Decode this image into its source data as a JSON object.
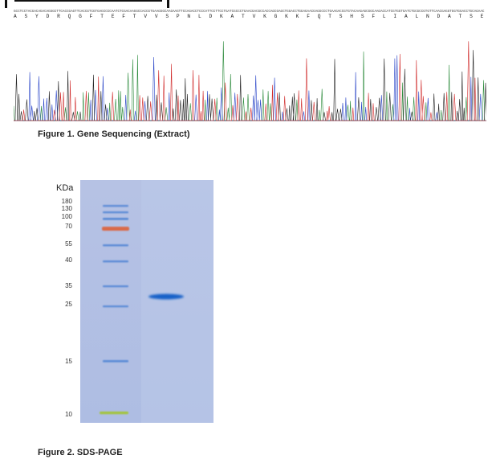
{
  "sequence": {
    "nucleotides": "GCCTCCTACGACAGACAGGGCTTCACCGAGTTCACCGTCGTGAGCCCCAATCTCGACAAGGCCACCGTGAAGGGCAAGAAGTTCCAGACCTCCCATTCCTTCCTGATCGCCCTGAACGACGCCACCAGCGAGCTGGACCTGGAGAACGAGGCCCTGAAGACCGTGTACAAGAGCGGCAAGACCATCGTGGTGATCTGCGCCGTGTTCAACGAGGTGGTGGACCTGCAGAAC",
    "amino_acids": "A S Y D R Q G F T E F T V V S P N L D K A T V K G K K F Q T S H S F L I A L N D A T S E L D L E N E A L K T V Y K S G K T I V V I C A V F N E V V D L Q N"
  },
  "figure1": {
    "caption": "Figure 1. Gene Sequencing (Extract)"
  },
  "figure2": {
    "caption": "Figure 2. SDS-PAGE",
    "unit_label": "KDa",
    "marker_labels": [
      "180",
      "130",
      "100",
      "70",
      "55",
      "40",
      "35",
      "25",
      "15",
      "10"
    ],
    "colors": {
      "gel_background": "#b4c1e4",
      "marker_band": "#5a8ad6",
      "marker_70": "#d96a4a",
      "marker_10": "#a3c43c",
      "sample_band": "#1660c8"
    }
  }
}
